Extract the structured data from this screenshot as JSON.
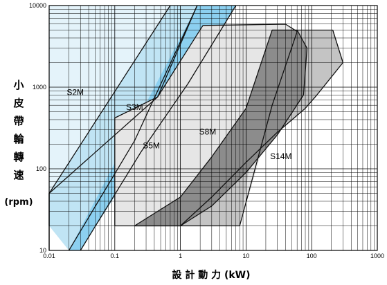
{
  "chart_data": {
    "type": "area",
    "xscale": "log",
    "yscale": "log",
    "xlim": [
      0.01,
      1000
    ],
    "ylim": [
      10,
      10000
    ],
    "grid": true,
    "xlabel": "設 計 動 力 (kW)",
    "ylabel": "小皮帶輪轉速",
    "ylabel_unit": "(rpm)",
    "x_ticks": [
      "0.01",
      "0.1",
      "1",
      "10",
      "100",
      "1000"
    ],
    "y_ticks": [
      "10",
      "100",
      "1000",
      "10000"
    ],
    "series": [
      {
        "name": "S2M",
        "color": "#e4f3fa",
        "label_at": [
          0.025,
          850
        ],
        "polygon": [
          [
            0.01,
            10
          ],
          [
            0.01,
            10000
          ],
          [
            0.7,
            10000
          ],
          [
            0.01,
            50
          ]
        ]
      },
      {
        "name": "S3M",
        "color": "#c0e4f4",
        "label_at": [
          0.2,
          560
        ],
        "polygon": [
          [
            0.01,
            20
          ],
          [
            0.01,
            50
          ],
          [
            0.7,
            10000
          ],
          [
            1.8,
            10000
          ],
          [
            0.02,
            10
          ]
        ]
      },
      {
        "name": "S5M",
        "color": "#8cd0f0",
        "label_at": [
          0.36,
          190
        ],
        "polygon": [
          [
            0.02,
            10
          ],
          [
            1.8,
            10000
          ],
          [
            7,
            10000
          ],
          [
            0.03,
            10
          ]
        ]
      },
      {
        "name": "S8M",
        "color": "#e6e6e6",
        "label_at": [
          2.6,
          280
        ],
        "polygon": [
          [
            0.1,
            20
          ],
          [
            0.1,
            420
          ],
          [
            0.45,
            760
          ],
          [
            2.2,
            5700
          ],
          [
            40,
            5900
          ],
          [
            60,
            4800
          ],
          [
            8,
            20
          ]
        ]
      },
      {
        "name": "S14M",
        "color": "#c4c4c4",
        "label_at": [
          34,
          140
        ],
        "polygon": [
          [
            1,
            20
          ],
          [
            3,
            45
          ],
          [
            10,
            120
          ],
          [
            30,
            280
          ],
          [
            80,
            550
          ],
          [
            120,
            800
          ],
          [
            300,
            2000
          ],
          [
            210,
            5000
          ],
          [
            25,
            5000
          ],
          [
            8,
            20
          ]
        ]
      },
      {
        "name": "",
        "color": "#8c8c8c",
        "polygon": [
          [
            0.2,
            20
          ],
          [
            1,
            45
          ],
          [
            3,
            140
          ],
          [
            10,
            550
          ],
          [
            25,
            5000
          ],
          [
            60,
            5000
          ],
          [
            85,
            3000
          ],
          [
            75,
            800
          ],
          [
            30,
            260
          ],
          [
            10,
            90
          ],
          [
            3,
            35
          ],
          [
            1,
            20
          ]
        ]
      }
    ],
    "lines": [
      [
        [
          0.01,
          10
        ],
        [
          0.01,
          50
        ],
        [
          0.7,
          10000
        ]
      ],
      [
        [
          0.01,
          20
        ],
        [
          0.01,
          50
        ],
        [
          0.45,
          760
        ],
        [
          1.8,
          10000
        ]
      ],
      [
        [
          0.02,
          10
        ],
        [
          0.2,
          220
        ],
        [
          1.8,
          10000
        ]
      ],
      [
        [
          0.03,
          10
        ],
        [
          0.25,
          160
        ],
        [
          1.3,
          1100
        ],
        [
          7,
          10000
        ]
      ],
      [
        [
          0.1,
          20
        ],
        [
          0.1,
          420
        ],
        [
          0.45,
          760
        ],
        [
          2.2,
          5700
        ]
      ],
      [
        [
          2.2,
          5700
        ],
        [
          40,
          5900
        ],
        [
          60,
          4800
        ]
      ],
      [
        [
          8,
          20
        ],
        [
          25,
          600
        ],
        [
          60,
          4800
        ]
      ],
      [
        [
          0.1,
          20
        ],
        [
          8,
          20
        ]
      ],
      [
        [
          1,
          20
        ],
        [
          0.2,
          20
        ],
        [
          1,
          45
        ],
        [
          3,
          140
        ],
        [
          10,
          550
        ],
        [
          25,
          5000
        ],
        [
          60,
          5000
        ],
        [
          85,
          3000
        ],
        [
          75,
          800
        ],
        [
          30,
          260
        ],
        [
          10,
          90
        ],
        [
          3,
          35
        ],
        [
          1,
          20
        ]
      ],
      [
        [
          25,
          5000
        ],
        [
          210,
          5000
        ],
        [
          300,
          2000
        ],
        [
          120,
          800
        ],
        [
          80,
          550
        ],
        [
          30,
          280
        ],
        [
          10,
          120
        ],
        [
          3,
          45
        ],
        [
          1,
          20
        ]
      ]
    ]
  }
}
